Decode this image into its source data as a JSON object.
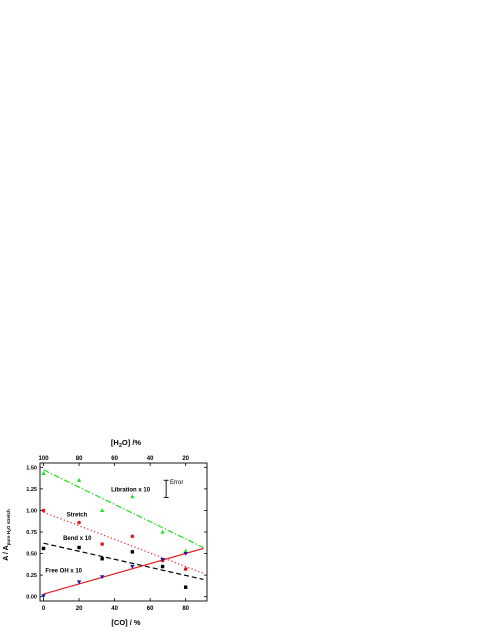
{
  "chart_data": {
    "type": "scatter",
    "xlabel": "[CO] / %",
    "x2label_parts": [
      "[H",
      "2",
      "O] /%"
    ],
    "ylabel_parts": [
      "A / A",
      "pure H",
      "2",
      "O stretch"
    ],
    "xlim": [
      -2,
      92
    ],
    "ylim": [
      -0.05,
      1.55
    ],
    "xticks": [
      0,
      20,
      40,
      60,
      80
    ],
    "x2ticks": [
      100,
      80,
      60,
      40,
      20
    ],
    "yticks": [
      0.0,
      0.25,
      0.5,
      0.75,
      1.0,
      1.25,
      1.5
    ],
    "ytick_labels": [
      "0.00",
      "0.25",
      "0.50",
      "0.75",
      "1.00",
      "1.25",
      "1.50"
    ],
    "error_label": "Error",
    "error_bar": {
      "x": 69,
      "y": 1.25,
      "half_range": 0.1
    },
    "series": [
      {
        "name": "Libration x 10",
        "marker": "triangle-up",
        "color": "#22dd22",
        "points": [
          [
            0,
            1.43
          ],
          [
            20,
            1.35
          ],
          [
            33,
            1.0
          ],
          [
            50,
            1.16
          ],
          [
            67,
            0.75
          ],
          [
            80,
            0.53
          ]
        ],
        "fit": [
          [
            0,
            1.47
          ],
          [
            90,
            0.57
          ]
        ],
        "dash": "dashdot"
      },
      {
        "name": "Stretch",
        "marker": "circle",
        "color": "#e02020",
        "points": [
          [
            0,
            1.0
          ],
          [
            20,
            0.86
          ],
          [
            33,
            0.61
          ],
          [
            50,
            0.7
          ],
          [
            67,
            0.42
          ],
          [
            80,
            0.32
          ]
        ],
        "fit": [
          [
            0,
            0.98
          ],
          [
            90,
            0.27
          ]
        ],
        "dash": "dot"
      },
      {
        "name": "Bend x 10",
        "marker": "square",
        "color": "#000000",
        "points": [
          [
            0,
            0.56
          ],
          [
            20,
            0.57
          ],
          [
            33,
            0.44
          ],
          [
            50,
            0.52
          ],
          [
            67,
            0.35
          ],
          [
            80,
            0.11
          ]
        ],
        "fit": [
          [
            0,
            0.62
          ],
          [
            90,
            0.2
          ]
        ],
        "dash": "dash"
      },
      {
        "name": "Free OH x 10",
        "marker": "triangle-down",
        "color": "#1a1aaa",
        "points": [
          [
            0,
            0.01
          ],
          [
            20,
            0.17
          ],
          [
            33,
            0.23
          ],
          [
            50,
            0.35
          ],
          [
            67,
            0.43
          ],
          [
            80,
            0.5
          ]
        ],
        "fit": [
          [
            0,
            0.03
          ],
          [
            90,
            0.56
          ]
        ],
        "dash": "solid",
        "fit_color": "#e02020"
      }
    ],
    "labels": [
      {
        "text": "Libration x 10",
        "x": 38,
        "y": 1.22
      },
      {
        "text": "Stretch",
        "x": 13,
        "y": 0.93
      },
      {
        "text": "Bend x 10",
        "x": 11,
        "y": 0.66
      },
      {
        "text": "Free OH x 10",
        "x": 1,
        "y": 0.28
      }
    ]
  }
}
